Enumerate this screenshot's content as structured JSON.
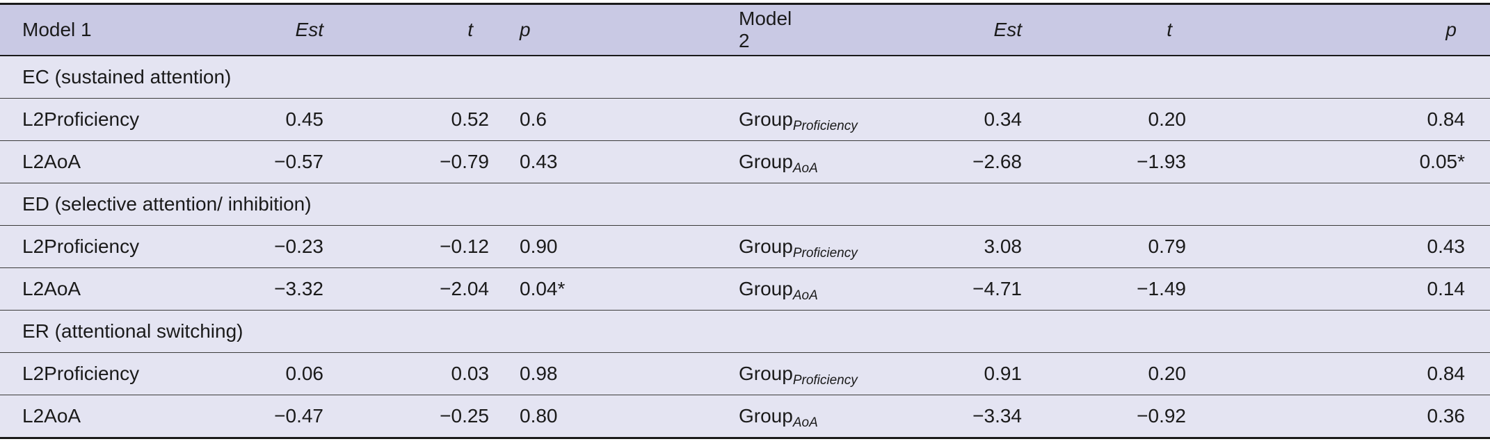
{
  "header": {
    "model1": "Model 1",
    "est1": "Est",
    "t1": "t",
    "p1": "p",
    "model2": "Model 2",
    "est2": "Est",
    "t2": "t",
    "p2": "p"
  },
  "group_base": "Group",
  "sections": [
    {
      "title": "EC (sustained attention)",
      "rows": [
        {
          "m1": "L2Proficiency",
          "est1": "0.45",
          "t1": "0.52",
          "p1": "0.6",
          "m2_sub": "Proficiency",
          "est2": "0.34",
          "t2": "0.20",
          "p2": "0.84"
        },
        {
          "m1": "L2AoA",
          "est1": "−0.57",
          "t1": "−0.79",
          "p1": "0.43",
          "m2_sub": "AoA",
          "est2": "−2.68",
          "t2": "−1.93",
          "p2": "0.05*"
        }
      ]
    },
    {
      "title": "ED (selective attention/ inhibition)",
      "rows": [
        {
          "m1": "L2Proficiency",
          "est1": "−0.23",
          "t1": "−0.12",
          "p1": "0.90",
          "m2_sub": "Proficiency",
          "est2": "3.08",
          "t2": "0.79",
          "p2": "0.43"
        },
        {
          "m1": "L2AoA",
          "est1": "−3.32",
          "t1": "−2.04",
          "p1": "0.04*",
          "m2_sub": "AoA",
          "est2": "−4.71",
          "t2": "−1.49",
          "p2": "0.14"
        }
      ]
    },
    {
      "title": "ER (attentional switching)",
      "rows": [
        {
          "m1": "L2Proficiency",
          "est1": "0.06",
          "t1": "0.03",
          "p1": "0.98",
          "m2_sub": "Proficiency",
          "est2": "0.91",
          "t2": "0.20",
          "p2": "0.84"
        },
        {
          "m1": "L2AoA",
          "est1": "−0.47",
          "t1": "−0.25",
          "p1": "0.80",
          "m2_sub": "AoA",
          "est2": "−3.34",
          "t2": "−0.92",
          "p2": "0.36"
        }
      ]
    }
  ]
}
